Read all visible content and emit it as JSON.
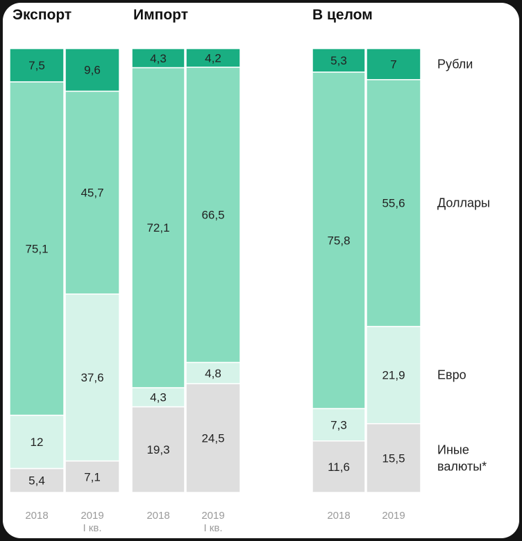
{
  "colors": {
    "Рубли": "#1aae82",
    "Доллары": "#87dcbe",
    "Евро": "#d6f3e9",
    "Иные валюты*": "#dedede"
  },
  "legend": [
    {
      "key": "Рубли",
      "lines": [
        "Рубли"
      ]
    },
    {
      "key": "Доллары",
      "lines": [
        "Доллары"
      ]
    },
    {
      "key": "Евро",
      "lines": [
        "Евро"
      ]
    },
    {
      "key": "Иные валюты*",
      "lines": [
        "Иные",
        "валюты*"
      ]
    }
  ],
  "chart_data": [
    {
      "type": "bar",
      "stacked": true,
      "title": "Экспорт",
      "categories": [
        [
          "2018"
        ],
        [
          "2019",
          "I кв."
        ]
      ],
      "series": [
        {
          "name": "Иные валюты*",
          "values": [
            5.4,
            7.1
          ]
        },
        {
          "name": "Евро",
          "values": [
            12,
            37.6
          ]
        },
        {
          "name": "Доллары",
          "values": [
            75.1,
            45.7
          ]
        },
        {
          "name": "Рубли",
          "values": [
            7.5,
            9.6
          ]
        }
      ]
    },
    {
      "type": "bar",
      "stacked": true,
      "title": "Импорт",
      "categories": [
        [
          "2018"
        ],
        [
          "2019",
          "I кв."
        ]
      ],
      "series": [
        {
          "name": "Иные валюты*",
          "values": [
            19.3,
            24.5
          ]
        },
        {
          "name": "Евро",
          "values": [
            4.3,
            4.8
          ]
        },
        {
          "name": "Доллары",
          "values": [
            72.1,
            66.5
          ]
        },
        {
          "name": "Рубли",
          "values": [
            4.3,
            4.2
          ]
        }
      ]
    },
    {
      "type": "bar",
      "stacked": true,
      "title": "В целом",
      "categories": [
        [
          "2018"
        ],
        [
          "2019"
        ]
      ],
      "series": [
        {
          "name": "Иные валюты*",
          "values": [
            11.6,
            15.5
          ]
        },
        {
          "name": "Евро",
          "values": [
            7.3,
            21.9
          ]
        },
        {
          "name": "Доллары",
          "values": [
            75.8,
            55.6
          ]
        },
        {
          "name": "Рубли",
          "values": [
            5.3,
            7
          ]
        }
      ]
    }
  ]
}
